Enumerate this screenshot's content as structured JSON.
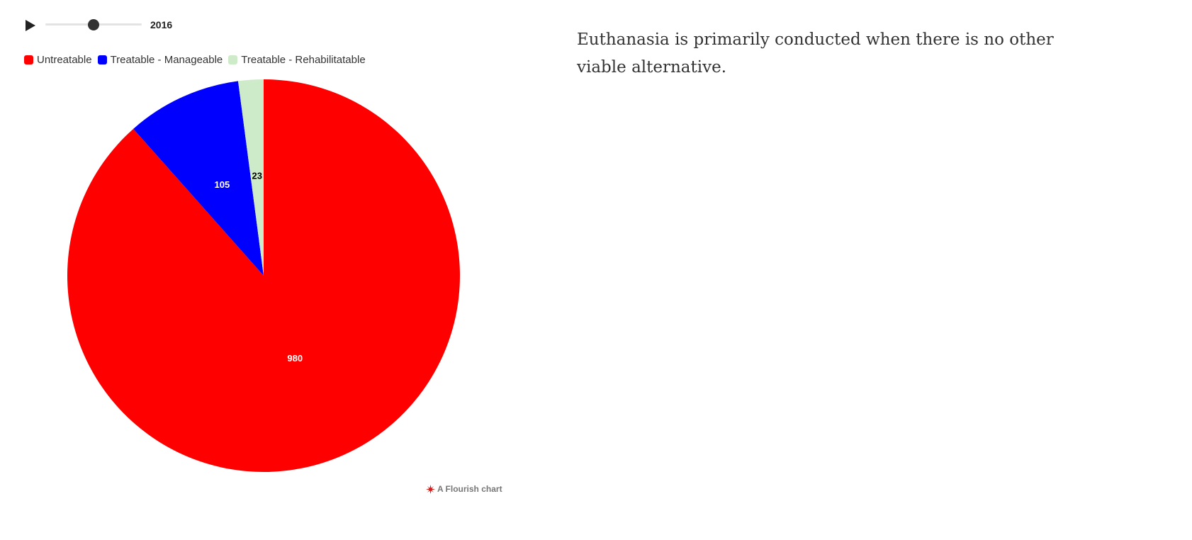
{
  "timeline": {
    "year": "2016",
    "slider_position": 0.5
  },
  "legend": {
    "items": [
      {
        "label": "Untreatable",
        "color": "#ff0000"
      },
      {
        "label": "Treatable - Manageable",
        "color": "#0000ff"
      },
      {
        "label": "Treatable - Rehabilitatable",
        "color": "#cdebc8"
      }
    ]
  },
  "chart_data": {
    "type": "pie",
    "title": "",
    "categories": [
      "Untreatable",
      "Treatable - Manageable",
      "Treatable - Rehabilitatable"
    ],
    "values": [
      980,
      105,
      23
    ],
    "colors": [
      "#ff0000",
      "#0000ff",
      "#cdebc8"
    ],
    "label_colors": [
      "#ffffff",
      "#ffffff",
      "#000000"
    ],
    "start_angle": "12 o'clock",
    "direction": "clockwise",
    "legend_position": "top-left"
  },
  "credit": {
    "text": "A Flourish chart",
    "icon": "flourish-logo-icon"
  },
  "side_text": "Euthanasia is primarily conducted when there is no other viable alternative."
}
